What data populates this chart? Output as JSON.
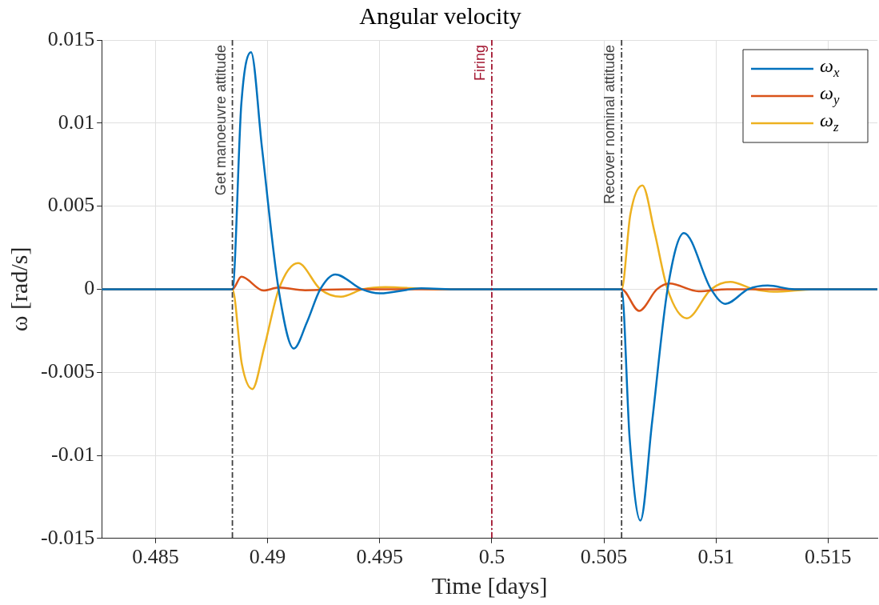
{
  "chart_data": {
    "type": "line",
    "title": "Angular velocity",
    "xlabel": "Time [days]",
    "ylabel": "ω [rad/s]",
    "xlim": [
      0.4826,
      0.5172
    ],
    "xticks": [
      0.485,
      0.49,
      0.495,
      0.5,
      0.505,
      0.51,
      0.515
    ],
    "ylim": [
      -0.015,
      0.015
    ],
    "yticks": [
      -0.015,
      -0.01,
      -0.005,
      0,
      0.005,
      0.01,
      0.015
    ],
    "grid": true,
    "legend": "top right",
    "marker": "none",
    "line_style": "solid",
    "ref_lines": [
      {
        "axis": "x",
        "value": 0.48843,
        "label": "Get manoeuvre attitude",
        "color": "#404040",
        "line_style": "dashed"
      },
      {
        "axis": "x",
        "value": 0.5,
        "label": "Firing",
        "color": "#a2142f",
        "line_style": "dashed"
      },
      {
        "axis": "x",
        "value": 0.50579,
        "label": "Recover nominal attitude",
        "color": "#404040",
        "line_style": "dashed"
      }
    ],
    "series": [
      {
        "name": "ω$_{x}$",
        "color": "#0072bd",
        "x": [
          0.4826,
          0.48843,
          0.48883,
          0.48926,
          0.48975,
          0.49049,
          0.49117,
          0.49175,
          0.49235,
          0.49302,
          0.4942,
          0.495,
          0.49685,
          0.4985,
          0.50579,
          0.50615,
          0.50663,
          0.50715,
          0.50784,
          0.50857,
          0.50978,
          0.51042,
          0.51144,
          0.51231,
          0.5135,
          0.5172
        ],
        "values": [
          0,
          0,
          0.0112,
          0.01427,
          0.0085,
          0,
          -0.00357,
          -0.002,
          0,
          0.00089,
          0,
          -0.00025,
          5e-05,
          0,
          0,
          -0.009,
          -0.01392,
          -0.008,
          0,
          0.00338,
          0,
          -0.00088,
          0,
          0.00022,
          0,
          0
        ]
      },
      {
        "name": "ω$_{y}$",
        "color": "#d95319",
        "x": [
          0.4826,
          0.48843,
          0.48883,
          0.48981,
          0.4905,
          0.49167,
          0.4935,
          0.50579,
          0.50657,
          0.50737,
          0.50793,
          0.50922,
          0.5105,
          0.5172
        ],
        "values": [
          0,
          0,
          0.00075,
          -8e-05,
          0.0001,
          -6e-05,
          0,
          0,
          -0.0013,
          0,
          0.00034,
          -0.00012,
          0,
          0
        ]
      },
      {
        "name": "ω$_{z}$",
        "color": "#edb120",
        "x": [
          0.4826,
          0.48843,
          0.48885,
          0.48932,
          0.48985,
          0.4905,
          0.49136,
          0.49235,
          0.49327,
          0.49425,
          0.49525,
          0.4975,
          0.50579,
          0.50618,
          0.50672,
          0.50725,
          0.50784,
          0.5087,
          0.50978,
          0.51064,
          0.51169,
          0.51256,
          0.5145,
          0.5172
        ],
        "values": [
          0,
          0,
          -0.0045,
          -0.00601,
          -0.0035,
          0,
          0.00157,
          0,
          -0.00045,
          0,
          0.00013,
          0,
          0,
          0.0045,
          0.00624,
          0.0035,
          0,
          -0.00175,
          0,
          0.00044,
          0,
          -0.00015,
          0,
          0
        ]
      }
    ]
  }
}
